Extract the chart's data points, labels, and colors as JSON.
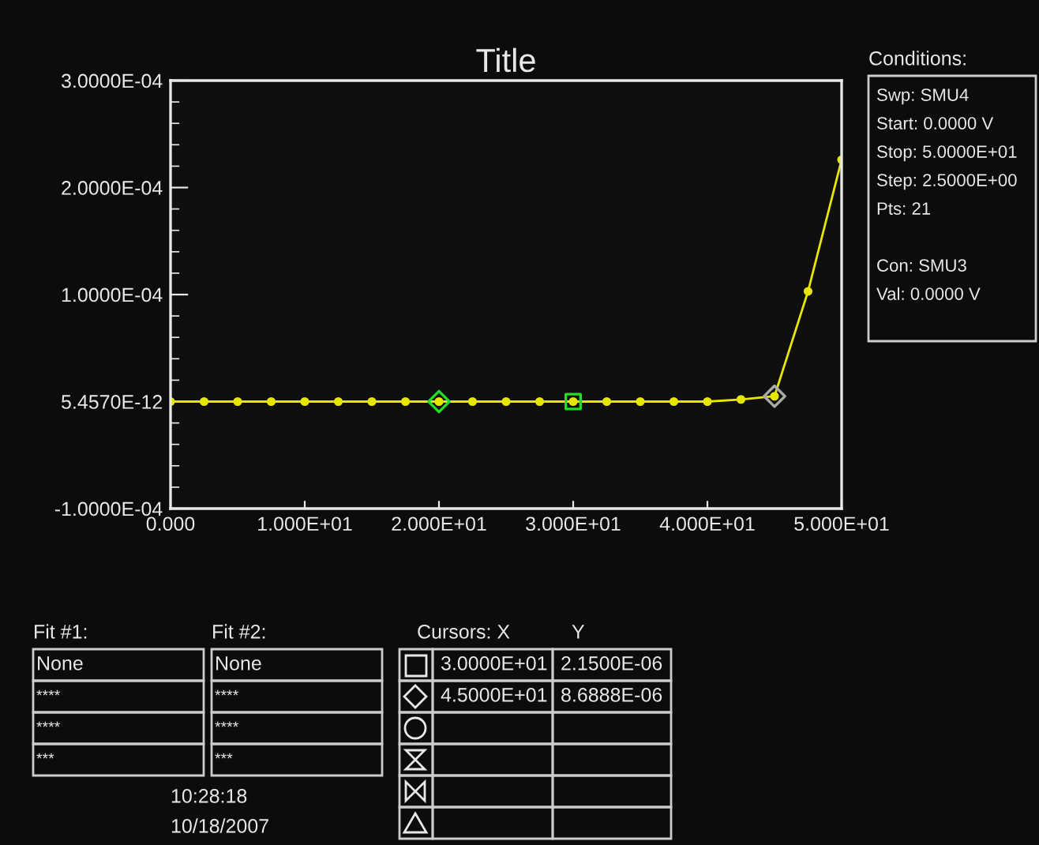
{
  "chart_data": {
    "type": "line",
    "title": "Title",
    "x": [
      0,
      2.5,
      5,
      7.5,
      10,
      12.5,
      15,
      17.5,
      20,
      22.5,
      25,
      27.5,
      30,
      32.5,
      35,
      37.5,
      40,
      42.5,
      45,
      47.5,
      50
    ],
    "series": [
      {
        "color": "#e6e600",
        "marker": "circle",
        "values": [
          0,
          0,
          0,
          0,
          0,
          0,
          0,
          0,
          0,
          0,
          0,
          0,
          0,
          0,
          0,
          0,
          0,
          2e-06,
          5e-06,
          0.000103,
          0.000226
        ]
      },
      {
        "type": "scatter",
        "color": "#22dd22",
        "marker": "diamond",
        "x": [
          20
        ],
        "values": [
          0
        ]
      },
      {
        "type": "scatter",
        "color": "#22dd22",
        "marker": "square",
        "x": [
          30
        ],
        "values": [
          0
        ]
      },
      {
        "type": "scatter",
        "color": "#aaaaaa",
        "marker": "diamond",
        "x": [
          45
        ],
        "values": [
          5e-06
        ]
      }
    ],
    "xlim": [
      0,
      50
    ],
    "ylim": [
      -0.0001,
      0.0003
    ],
    "xticks": [
      {
        "value": 0,
        "label": "0.000"
      },
      {
        "value": 10,
        "label": "1.000E+01"
      },
      {
        "value": 20,
        "label": "2.000E+01"
      },
      {
        "value": 30,
        "label": "3.000E+01"
      },
      {
        "value": 40,
        "label": "4.000E+01"
      },
      {
        "value": 50,
        "label": "5.000E+01"
      }
    ],
    "yticks": [
      {
        "value": -0.0001,
        "label": "-1.0000E-04"
      },
      {
        "value": 5.457e-12,
        "label": "5.4570E-12"
      },
      {
        "value": 0.0001,
        "label": "1.0000E-04"
      },
      {
        "value": 0.0002,
        "label": "2.0000E-04"
      },
      {
        "value": 0.0003,
        "label": "3.0000E-04"
      }
    ],
    "grid": false,
    "legend": false,
    "annotations": [
      "Conditions:",
      "Swp: SMU4",
      "Start: 0.0000 V",
      "Stop: 5.0000E+01",
      "Step: 2.5000E+00",
      "Pts: 21",
      "Con: SMU3",
      "Val: 0.0000 V",
      "Fit #1:",
      "None",
      "****",
      "****",
      "***",
      "Fit #2:",
      "None",
      "****",
      "****",
      "***",
      "Cursors: X",
      "Y",
      "3.0000E+01",
      "2.1500E-06",
      "4.5000E+01",
      "8.6888E-06",
      "10:28:18",
      "10/18/2007"
    ]
  }
}
